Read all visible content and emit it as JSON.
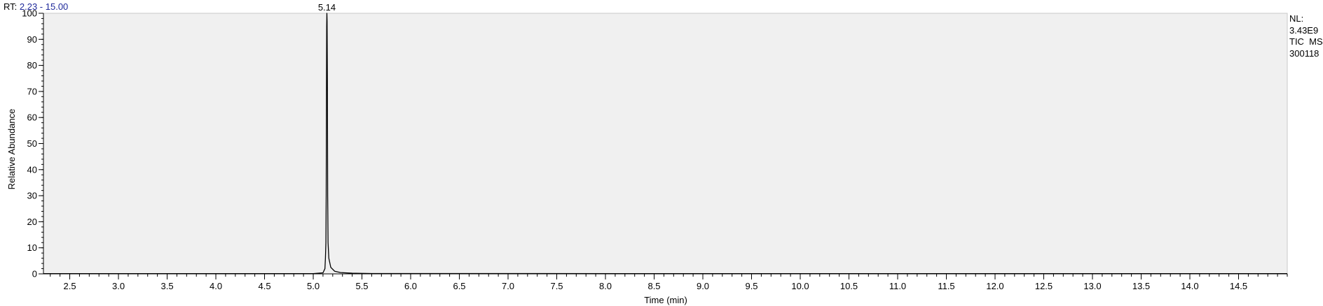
{
  "header": {
    "rt_prefix": "RT:",
    "rt_range": "2.23 - 15.00"
  },
  "normalization": {
    "nl_label": "NL:",
    "nl_value": "3.43E9",
    "trace_type": "TIC  MS",
    "sample_name": "300118"
  },
  "colors": {
    "plot_background": "#f0f0f0",
    "trace": "#000000",
    "rt_range_text": "#1f2a9b"
  },
  "chart_data": {
    "type": "line",
    "title": "",
    "xlabel": "Time (min)",
    "ylabel": "Relative Abundance",
    "xlim": [
      2.23,
      15.0
    ],
    "ylim": [
      0,
      100
    ],
    "x_major_ticks": [
      2.5,
      3.0,
      3.5,
      4.0,
      4.5,
      5.0,
      5.5,
      6.0,
      6.5,
      7.0,
      7.5,
      8.0,
      8.5,
      9.0,
      9.5,
      10.0,
      10.5,
      11.0,
      11.5,
      12.0,
      12.5,
      13.0,
      13.5,
      14.0,
      14.5
    ],
    "x_tick_labels": [
      "2.5",
      "3.0",
      "3.5",
      "4.0",
      "4.5",
      "5.0",
      "5.5",
      "6.0",
      "6.5",
      "7.0",
      "7.5",
      "8.0",
      "8.5",
      "9.0",
      "9.5",
      "10.0",
      "10.5",
      "11.0",
      "11.5",
      "12.0",
      "12.5",
      "13.0",
      "13.5",
      "14.0",
      "14.5"
    ],
    "x_minor_step": 0.1,
    "y_major_ticks": [
      0,
      10,
      20,
      30,
      40,
      50,
      60,
      70,
      80,
      90,
      100
    ],
    "y_tick_labels": [
      "0",
      "10",
      "20",
      "30",
      "40",
      "50",
      "60",
      "70",
      "80",
      "90",
      "100"
    ],
    "y_minor_step": 2,
    "grid": false,
    "series": [
      {
        "name": "TIC MS 300118",
        "x": [
          2.23,
          5.0,
          5.1,
          5.12,
          5.125,
          5.13,
          5.133,
          5.136,
          5.138,
          5.14,
          5.142,
          5.145,
          5.148,
          5.152,
          5.16,
          5.18,
          5.22,
          5.28,
          5.4,
          5.6,
          15.0
        ],
        "y": [
          0.1,
          0.1,
          0.4,
          2.0,
          6.0,
          12.0,
          30.0,
          72.0,
          95.0,
          100.0,
          97.0,
          75.0,
          30.0,
          12.0,
          6.0,
          2.5,
          1.0,
          0.5,
          0.25,
          0.12,
          0.08
        ]
      }
    ],
    "annotations": [
      {
        "text": "5.14",
        "x": 5.14,
        "y": 100
      }
    ]
  }
}
